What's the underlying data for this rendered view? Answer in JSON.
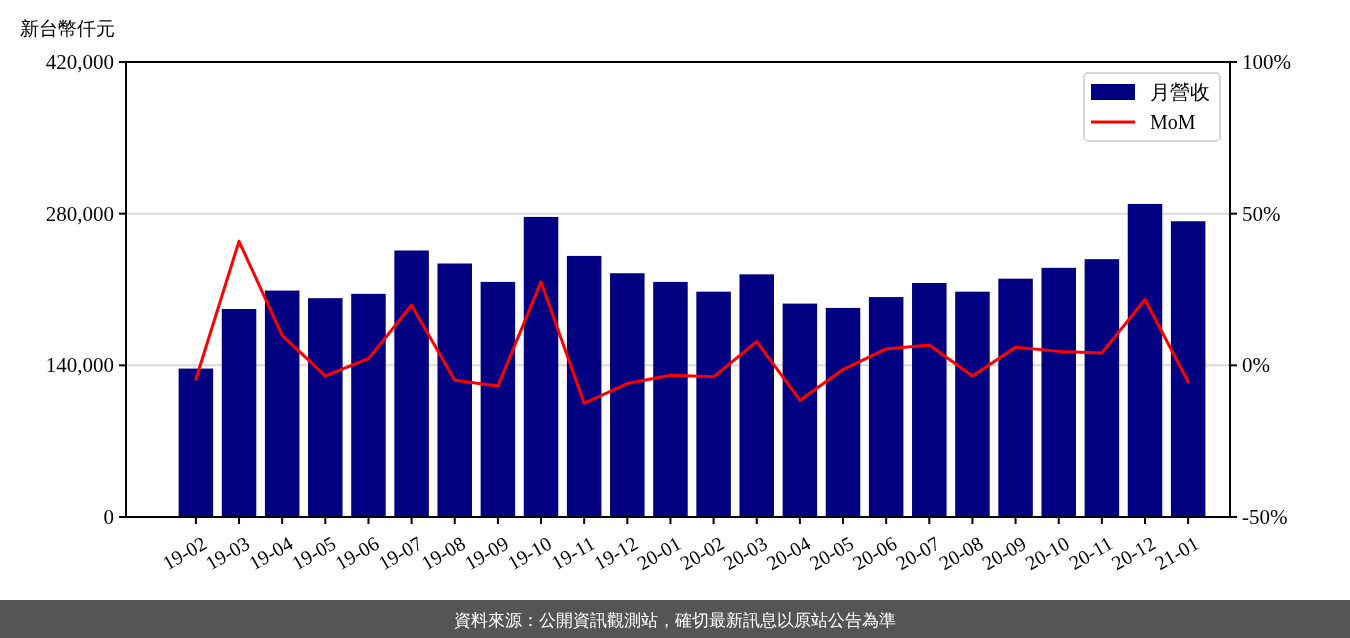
{
  "chart_data": {
    "type": "bar",
    "ylabel": "新台幣仟元",
    "categories": [
      "19-02",
      "19-03",
      "19-04",
      "19-05",
      "19-06",
      "19-07",
      "19-08",
      "19-09",
      "19-10",
      "19-11",
      "19-12",
      "20-01",
      "20-02",
      "20-03",
      "20-04",
      "20-05",
      "20-06",
      "20-07",
      "20-08",
      "20-09",
      "20-10",
      "20-11",
      "20-12",
      "21-01"
    ],
    "series": [
      {
        "name": "月營收",
        "color": "#000080",
        "values": [
          137000,
          192000,
          209000,
          202000,
          206000,
          246000,
          234000,
          217000,
          277000,
          241000,
          225000,
          217000,
          208000,
          224000,
          197000,
          193000,
          203000,
          216000,
          208000,
          220000,
          230000,
          238000,
          289000,
          273000
        ]
      },
      {
        "name": "MoM",
        "type": "line",
        "axis": "y2",
        "color": "#ff0000",
        "values": [
          -4.6,
          40.9,
          9.9,
          -3.5,
          2.2,
          19.8,
          -4.9,
          -6.8,
          27.5,
          -12.5,
          -6.0,
          -3.3,
          -3.8,
          7.8,
          -11.5,
          -1.4,
          5.4,
          6.7,
          -3.5,
          6.0,
          4.6,
          4.1,
          21.7,
          -5.4
        ]
      }
    ],
    "ylim": [
      0,
      420000
    ],
    "yticks": [
      {
        "value": 0,
        "label": "0"
      },
      {
        "value": 140000,
        "label": "140,000"
      },
      {
        "value": 280000,
        "label": "280,000"
      },
      {
        "value": 420000,
        "label": "420,000"
      }
    ],
    "y2lim": [
      -50,
      100
    ],
    "y2ticks": [
      {
        "value": -50,
        "label": "-50%"
      },
      {
        "value": 0,
        "label": "0%"
      },
      {
        "value": 50,
        "label": "50%"
      },
      {
        "value": 100,
        "label": "100%"
      }
    ],
    "grid": "y",
    "legend": "top right",
    "annotations": [
      "資料來源：公開資訊觀測站，確切最新訊息以原站公告為準"
    ]
  }
}
